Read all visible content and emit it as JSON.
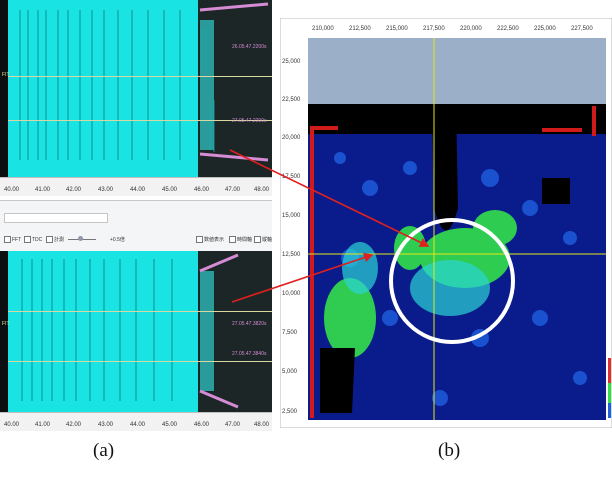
{
  "panel_a": {
    "top_screenshot": {
      "x_ticks": [
        "40.00",
        "41.00",
        "42.00",
        "43.00",
        "44.00",
        "45.00",
        "46.00",
        "47.00",
        "48.00"
      ],
      "y_label": "FIT",
      "timestamps": [
        "26.05.47.2200s",
        "27.05.47.2200s"
      ]
    },
    "toolbar": {
      "items": [
        "FFT",
        "TDC",
        "計測"
      ],
      "zoom_value": "+0.5倍",
      "right_items": [
        "数値表示",
        "時間軸",
        "縦軸"
      ]
    },
    "bottom_screenshot": {
      "x_ticks": [
        "40.00",
        "41.00",
        "42.00",
        "43.00",
        "44.00",
        "45.00",
        "46.00",
        "47.00",
        "48.00"
      ],
      "y_label": "FIT",
      "timestamps": [
        "27.05.47.3820s",
        "27.05.47.3840s"
      ]
    }
  },
  "panel_b": {
    "x_ticks": [
      "210,000",
      "212,500",
      "215,000",
      "217,500",
      "220,000",
      "222,500",
      "225,000",
      "227,500"
    ],
    "y_ticks": [
      "25,000",
      "22,500",
      "20,000",
      "17,500",
      "15,000",
      "12,500",
      "10,000",
      "7,500",
      "5,000",
      "2,500"
    ]
  },
  "labels": {
    "a": "(a)",
    "b": "(b)"
  },
  "colors": {
    "waveform": "#19e3e3",
    "annotation_arrow": "#e0201e",
    "highlight_circle": "#ffffff",
    "crosshair": "#e6e619",
    "heatmap_low": "#0a1c8c",
    "heatmap_high": "#33e04a"
  }
}
